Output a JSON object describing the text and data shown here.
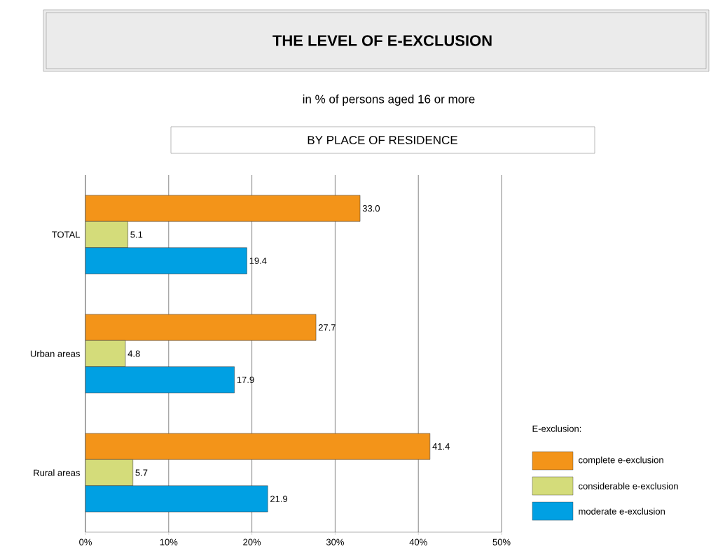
{
  "chart_data": {
    "type": "bar",
    "orientation": "horizontal",
    "title": "THE LEVEL OF E-EXCLUSION",
    "subtitle": "in % of persons aged 16 or more",
    "annotations": [
      "BY PLACE OF RESIDENCE"
    ],
    "categories": [
      "TOTAL",
      "Urban areas",
      "Rural areas"
    ],
    "series": [
      {
        "name": "complete e-exclusion",
        "color": "#f39419",
        "values": [
          33.0,
          27.7,
          41.4
        ],
        "value_labels": [
          "33.0",
          "27.7",
          "41.4"
        ]
      },
      {
        "name": "considerable e-exclusion",
        "color": "#d4dc7a",
        "values": [
          5.1,
          4.8,
          5.7
        ],
        "value_labels": [
          "5.1",
          "4.8",
          "5.7"
        ]
      },
      {
        "name": "moderate e-exclusion",
        "color": "#00a0e3",
        "values": [
          19.4,
          17.9,
          21.9
        ],
        "value_labels": [
          "19.4",
          "17.9",
          "21.9"
        ]
      }
    ],
    "xlim": [
      0,
      50
    ],
    "xticks": [
      {
        "value": 0,
        "label": "0%"
      },
      {
        "value": 10,
        "label": "10%"
      },
      {
        "value": 20,
        "label": "20%"
      },
      {
        "value": 30,
        "label": "30%"
      },
      {
        "value": 40,
        "label": "40%"
      },
      {
        "value": 50,
        "label": "50%"
      }
    ],
    "grid": "x",
    "legend": "bottom right",
    "legend_title": "E-exclusion:"
  }
}
